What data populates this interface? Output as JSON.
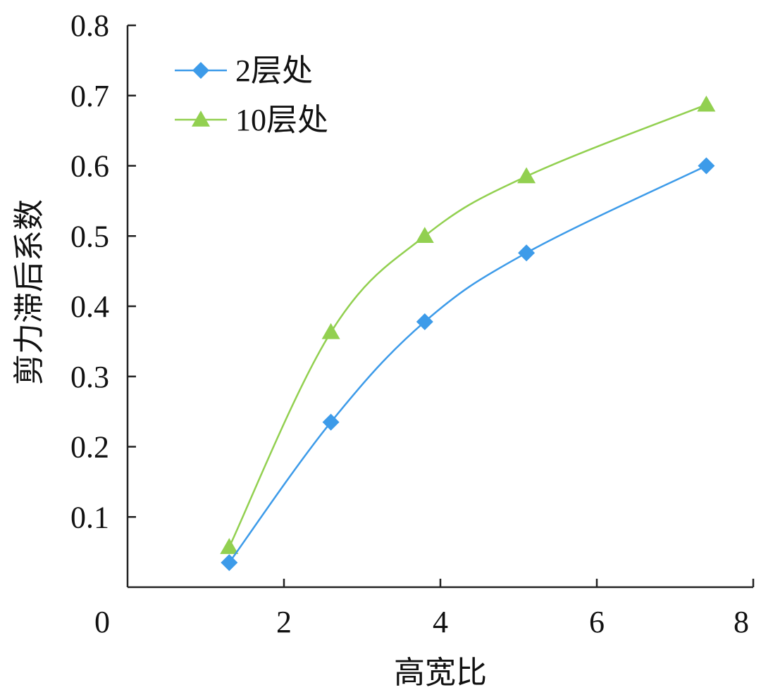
{
  "chart_data": {
    "type": "line",
    "xlabel": "高宽比",
    "ylabel": "剪力滞后系数",
    "xlim": [
      0,
      8
    ],
    "ylim": [
      0,
      0.8
    ],
    "x_ticks": [
      "0",
      "2",
      "4",
      "6",
      "8"
    ],
    "y_ticks": [
      "0.1",
      "0.2",
      "0.3",
      "0.4",
      "0.5",
      "0.6",
      "0.7",
      "0.8"
    ],
    "grid": false,
    "legend_position": "top-left",
    "series": [
      {
        "name": "2层处",
        "marker": "diamond",
        "color": "#3d9be9",
        "x": [
          1.3,
          2.6,
          3.8,
          5.1,
          7.4
        ],
        "y": [
          0.035,
          0.235,
          0.378,
          0.476,
          0.6
        ]
      },
      {
        "name": "10层处",
        "marker": "triangle",
        "color": "#92d050",
        "x": [
          1.3,
          2.6,
          3.8,
          5.1,
          7.4
        ],
        "y": [
          0.057,
          0.363,
          0.5,
          0.585,
          0.687
        ]
      }
    ]
  }
}
